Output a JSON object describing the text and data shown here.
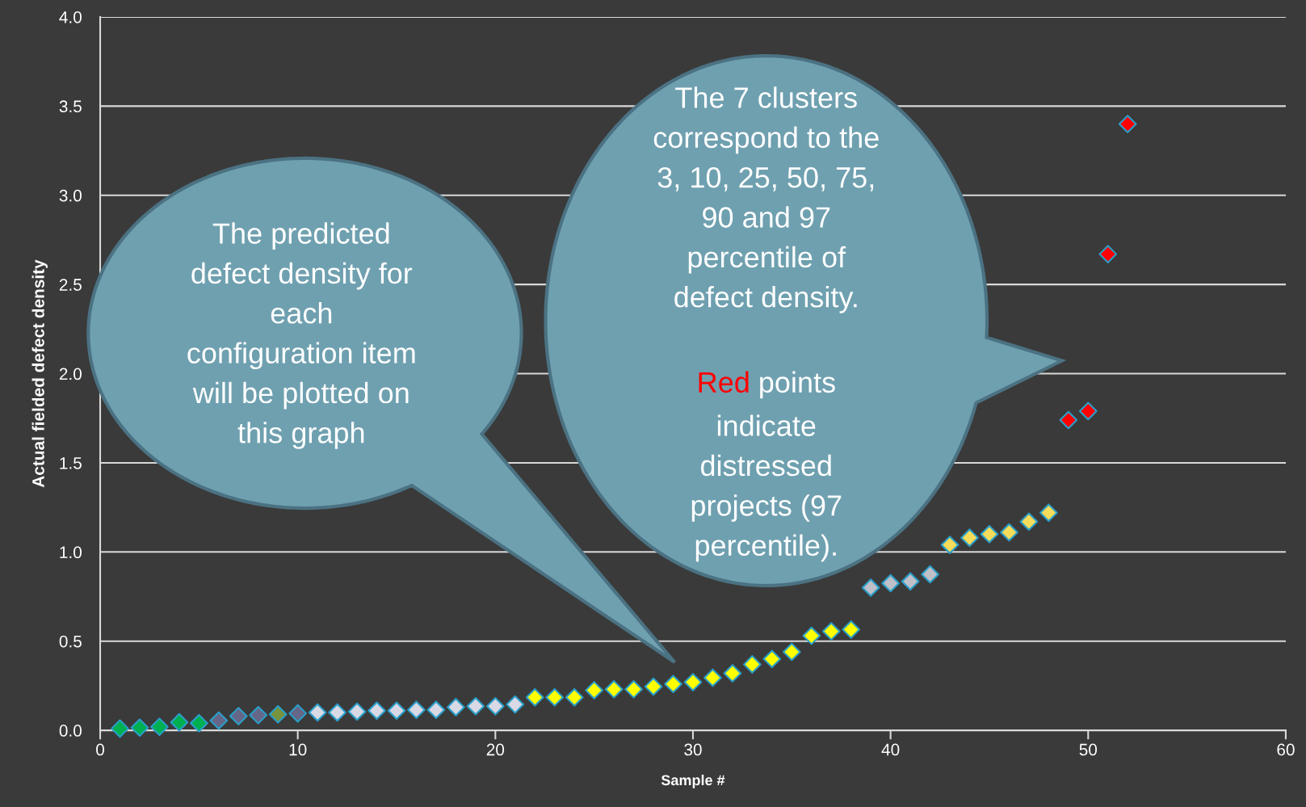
{
  "chart_data": {
    "type": "scatter",
    "xlabel": "Sample #",
    "ylabel": "Actual fielded defect density",
    "x": [
      1,
      2,
      3,
      4,
      5,
      6,
      7,
      8,
      9,
      10,
      11,
      12,
      13,
      14,
      15,
      16,
      17,
      18,
      19,
      20,
      21,
      22,
      23,
      24,
      25,
      26,
      27,
      28,
      29,
      30,
      31,
      32,
      33,
      34,
      35,
      36,
      37,
      38,
      39,
      40,
      41,
      42,
      43,
      44,
      45,
      46,
      47,
      48,
      49,
      50,
      51,
      52
    ],
    "values": [
      0.01,
      0.015,
      0.02,
      0.045,
      0.04,
      0.055,
      0.08,
      0.085,
      0.09,
      0.095,
      0.1,
      0.1,
      0.105,
      0.11,
      0.11,
      0.115,
      0.115,
      0.13,
      0.135,
      0.135,
      0.145,
      0.185,
      0.185,
      0.185,
      0.225,
      0.23,
      0.23,
      0.245,
      0.26,
      0.27,
      0.295,
      0.32,
      0.37,
      0.4,
      0.44,
      0.53,
      0.555,
      0.565,
      0.8,
      0.825,
      0.835,
      0.875,
      1.04,
      1.08,
      1.1,
      1.11,
      1.17,
      1.22,
      1.74,
      1.79,
      2.67,
      3.4
    ],
    "colors": [
      "#00b050",
      "#00b050",
      "#00b050",
      "#00b050",
      "#00b050",
      "#666688",
      "#666688",
      "#666688",
      "#77933c",
      "#666688",
      "#d9d9e6",
      "#d9d9e6",
      "#d9d9e6",
      "#d9d9e6",
      "#d9d9e6",
      "#d9d9e6",
      "#d9d9e6",
      "#d9d9e6",
      "#d9d9e6",
      "#d9d9e6",
      "#d9d9e6",
      "#ffff00",
      "#ffff00",
      "#ffff00",
      "#ffff00",
      "#ffff00",
      "#ffff00",
      "#ffff00",
      "#ffff00",
      "#ffff00",
      "#ffff00",
      "#ffff00",
      "#ffff00",
      "#ffff00",
      "#ffff00",
      "#ffff00",
      "#ffff00",
      "#ffff00",
      "#bfc0c8",
      "#bfc0c8",
      "#bfc0c8",
      "#bfc0c8",
      "#f5dc5a",
      "#f5dc5a",
      "#f5dc5a",
      "#f5dc5a",
      "#f5dc5a",
      "#f5dc5a",
      "#ff0000",
      "#ff0000",
      "#ff0000",
      "#ff0000"
    ],
    "marker": "diamond",
    "xlim": [
      0,
      60
    ],
    "xticks": [
      0,
      10,
      20,
      30,
      40,
      50,
      60
    ],
    "ylim": [
      0,
      4.0
    ],
    "yticks": [
      {
        "value": 0,
        "label": "0.0"
      },
      {
        "value": 0.5,
        "label": "0.5"
      },
      {
        "value": 1.0,
        "label": "1.0"
      },
      {
        "value": 1.5,
        "label": "1.5"
      },
      {
        "value": 2.0,
        "label": "2.0"
      },
      {
        "value": 2.5,
        "label": "2.5"
      },
      {
        "value": 3.0,
        "label": "3.0"
      },
      {
        "value": 3.5,
        "label": "3.5"
      },
      {
        "value": 4.0,
        "label": "4.0"
      }
    ],
    "grid": "y",
    "annotations": [
      "The predicted\ndefect density for\neach\nconfiguration item\nwill be plotted on\nthis graph",
      "The 7 clusters\ncorrespond to the\n3, 10, 25, 50, 75,\n90 and 97\npercentile of\ndefect density.",
      "Red points\nindicate\ndistressed\nprojects (97\npercentile)."
    ]
  }
}
